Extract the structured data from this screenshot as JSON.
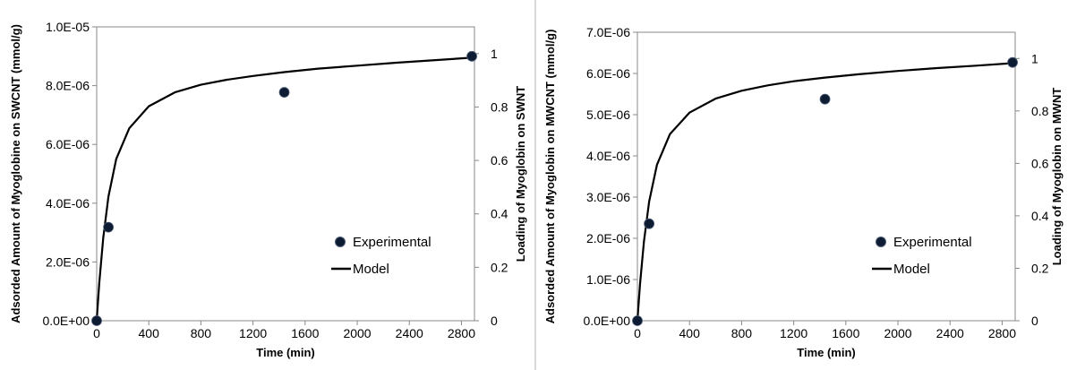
{
  "chart_data": [
    {
      "type": "scatter",
      "xlabel": "Time (min)",
      "ylabel": "Adsorded Amount of Myoglobine on SWCNT (mmol/g)",
      "y2label": "Loading of Myoglobin  on SWNT",
      "xlim": [
        0,
        2900
      ],
      "ylim": [
        0,
        1e-05
      ],
      "y2lim": [
        0,
        1.1
      ],
      "x_ticks": [
        "0",
        "400",
        "800",
        "1200",
        "1600",
        "2000",
        "2400",
        "2800"
      ],
      "y_ticks": [
        "0.0E+00",
        "2.0E-06",
        "4.0E-06",
        "6.0E-06",
        "8.0E-06",
        "1.0E-05"
      ],
      "y2_ticks": [
        "0",
        "0.2",
        "0.4",
        "0.6",
        "0.8",
        "1"
      ],
      "legend_position": "bottom-right",
      "grid": false,
      "series": [
        {
          "name": "Experimental",
          "kind": "points",
          "axis": "y2",
          "x": [
            0,
            90,
            1440,
            2880
          ],
          "y": [
            0,
            0.35,
            0.855,
            0.99
          ]
        },
        {
          "name": "Model",
          "kind": "line",
          "axis": "y",
          "x": [
            0,
            20,
            50,
            90,
            150,
            250,
            400,
            600,
            800,
            1000,
            1200,
            1440,
            1700,
            2000,
            2300,
            2600,
            2880
          ],
          "y": [
            0,
            1.29e-06,
            2.81e-06,
            4.22e-06,
            5.5e-06,
            6.55e-06,
            7.3e-06,
            7.77e-06,
            8.03e-06,
            8.2e-06,
            8.33e-06,
            8.46e-06,
            8.58e-06,
            8.68e-06,
            8.78e-06,
            8.87e-06,
            8.95e-06
          ]
        }
      ]
    },
    {
      "type": "scatter",
      "xlabel": "Time (min)",
      "ylabel": "Adsorded Amount  of Myoglobin on MWCNT (mmol/g)",
      "y2label": "Loading of Myoglobin on MWNT",
      "xlim": [
        0,
        2900
      ],
      "ylim": [
        0,
        7e-06
      ],
      "y2lim": [
        0,
        1.1
      ],
      "x_ticks": [
        "0",
        "400",
        "800",
        "1200",
        "1600",
        "2000",
        "2400",
        "2800"
      ],
      "y_ticks": [
        "0.0E+00",
        "1.0E-06",
        "2.0E-06",
        "3.0E-06",
        "4.0E-06",
        "5.0E-06",
        "6.0E-06",
        "7.0E-06"
      ],
      "y2_ticks": [
        "0",
        "0.2",
        "0.4",
        "0.6",
        "0.8",
        "1"
      ],
      "legend_position": "bottom-right",
      "grid": false,
      "series": [
        {
          "name": "Experimental",
          "kind": "points",
          "axis": "y2",
          "x": [
            0,
            90,
            1440,
            2880
          ],
          "y": [
            0,
            0.37,
            0.845,
            0.985
          ]
        },
        {
          "name": "Model",
          "kind": "line",
          "axis": "y",
          "x": [
            0,
            20,
            50,
            90,
            150,
            250,
            400,
            600,
            800,
            1000,
            1200,
            1440,
            1700,
            2000,
            2300,
            2600,
            2880
          ],
          "y": [
            0,
            8.8e-07,
            1.92e-06,
            2.89e-06,
            3.78e-06,
            4.53e-06,
            5.05e-06,
            5.39e-06,
            5.58e-06,
            5.71e-06,
            5.81e-06,
            5.9e-06,
            5.98e-06,
            6.06e-06,
            6.13e-06,
            6.19e-06,
            6.25e-06
          ]
        }
      ]
    }
  ]
}
